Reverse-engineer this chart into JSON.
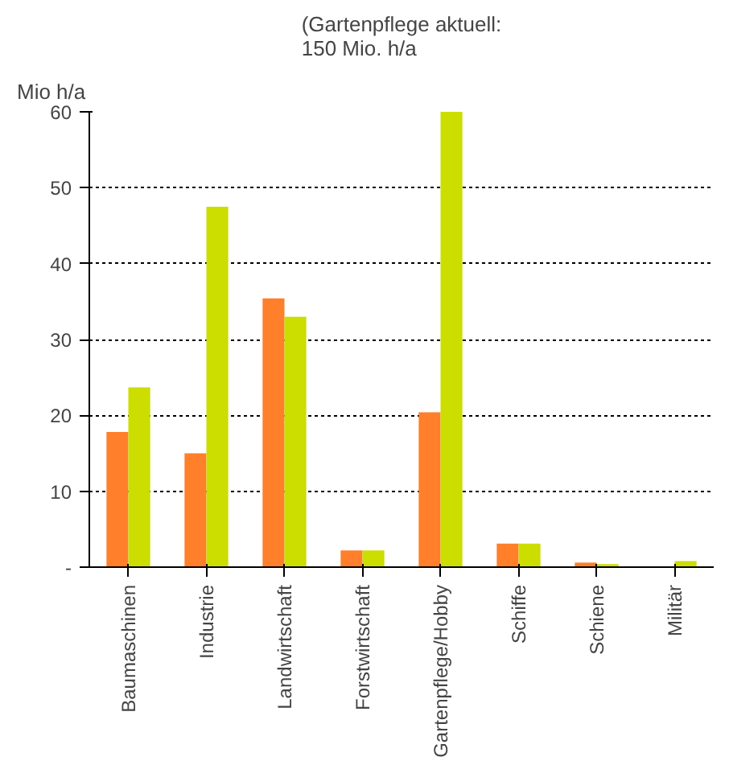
{
  "chart_data": {
    "type": "bar",
    "ylabel": "Mio h/a",
    "categories": [
      "Baumaschinen",
      "Industrie",
      "Landwirtschaft",
      "Forstwirtschaft",
      "Gartenpflege/Hobby",
      "Schiffe",
      "Schiene",
      "Militär"
    ],
    "series": [
      {
        "color": "#ff7f2a",
        "values": [
          17.8,
          15,
          35.4,
          2.2,
          20.4,
          3.1,
          0.6,
          0
        ]
      },
      {
        "color": "#ccdd00",
        "values": [
          23.7,
          47.5,
          33,
          2.2,
          60,
          3.1,
          0.4,
          0.8
        ]
      }
    ],
    "ylim": [
      0,
      60
    ],
    "yticks": [
      {
        "value": 0,
        "label": "-"
      },
      10,
      20,
      30,
      40,
      50,
      60
    ],
    "grid": "y",
    "annotations": [
      "(Gartenpflege aktuell:\n150 Mio. h/a"
    ]
  }
}
